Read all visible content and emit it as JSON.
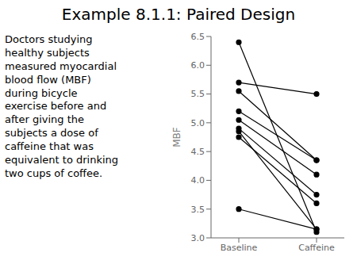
{
  "chart_data": {
    "type": "line",
    "title": "Example 8.1.1: Paired Design",
    "annotation": "Doctors studying\nhealthy subjects\nmeasured myocardial\nblood flow (MBF)\nduring bicycle\nexercise before and\nafter giving the\nsubjects a dose of\ncaffeine that was\nequivalent to drinking\ntwo cups of coffee.",
    "ylabel": "MBF",
    "categories": [
      "Baseline",
      "Caffeine"
    ],
    "series": [
      {
        "values": [
          6.4,
          3.1
        ]
      },
      {
        "values": [
          5.7,
          5.5
        ]
      },
      {
        "values": [
          5.55,
          4.35
        ]
      },
      {
        "values": [
          5.2,
          4.35
        ]
      },
      {
        "values": [
          5.05,
          4.1
        ]
      },
      {
        "values": [
          4.9,
          3.75
        ]
      },
      {
        "values": [
          4.75,
          3.6
        ]
      },
      {
        "values": [
          3.5,
          3.15
        ]
      },
      {
        "values": [
          4.85,
          3.15
        ]
      }
    ],
    "color": "black",
    "marker": "circle",
    "ylim": [
      3.0,
      6.5
    ],
    "yticks": [
      {
        "value": 3.0,
        "label": "3.0"
      },
      {
        "value": 3.5,
        "label": "3.5"
      },
      {
        "value": 4.0,
        "label": "4.0"
      },
      {
        "value": 4.5,
        "label": "4.5"
      },
      {
        "value": 5.0,
        "label": "5.0"
      },
      {
        "value": 5.5,
        "label": "5.5"
      },
      {
        "value": 6.0,
        "label": "6.0"
      },
      {
        "value": 6.5,
        "label": "6.5"
      }
    ]
  }
}
